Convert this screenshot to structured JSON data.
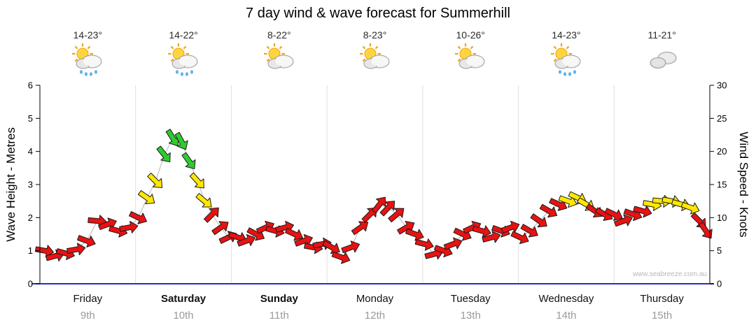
{
  "title": "7 day wind & wave forecast for Summerhill",
  "watermark": "www.seabreeze.com.au",
  "days": [
    {
      "name": "Friday",
      "date": "9th",
      "temp": "14-23°",
      "icon": "sun-cloud-rain",
      "bold": false
    },
    {
      "name": "Saturday",
      "date": "10th",
      "temp": "14-22°",
      "icon": "sun-cloud-rain",
      "bold": true
    },
    {
      "name": "Sunday",
      "date": "11th",
      "temp": "8-22°",
      "icon": "sun-cloud",
      "bold": true
    },
    {
      "name": "Monday",
      "date": "12th",
      "temp": "8-23°",
      "icon": "sun-cloud",
      "bold": false
    },
    {
      "name": "Tuesday",
      "date": "13th",
      "temp": "10-26°",
      "icon": "sun-cloud",
      "bold": false
    },
    {
      "name": "Wednesday",
      "date": "14th",
      "temp": "14-23°",
      "icon": "sun-cloud-rain",
      "bold": false
    },
    {
      "name": "Thursday",
      "date": "15th",
      "temp": "11-21°",
      "icon": "cloud",
      "bold": false
    }
  ],
  "chart_data": {
    "type": "wind-vector-series",
    "title": "7 day wind & wave forecast for Summerhill",
    "x_unit": "day_fraction",
    "x_range": [
      0,
      7
    ],
    "grid": "vertical-day-boundaries",
    "wave_axis": {
      "label": "Wave Height - Metres",
      "min": 0,
      "max": 6,
      "ticks": [
        0,
        1,
        2,
        3,
        4,
        5,
        6
      ]
    },
    "wind_axis": {
      "label": "Wind Speed - Knots",
      "min": 0,
      "max": 30,
      "ticks": [
        0,
        5,
        10,
        15,
        20,
        25,
        30
      ]
    },
    "speed_colors": {
      "red": "#e81212",
      "yellow": "#ffe800",
      "green": "#2ecc2e"
    },
    "points_format": [
      "day_fraction",
      "knots",
      "arrow_rotation_deg",
      "color_code(r|y|g)"
    ],
    "points": [
      [
        0.05,
        5,
        10,
        "r"
      ],
      [
        0.16,
        4.2,
        -15,
        "r"
      ],
      [
        0.27,
        4.6,
        15,
        "r"
      ],
      [
        0.38,
        5.2,
        -10,
        "r"
      ],
      [
        0.49,
        6.5,
        20,
        "r"
      ],
      [
        0.6,
        9.5,
        5,
        "r"
      ],
      [
        0.71,
        9,
        -20,
        "r"
      ],
      [
        0.82,
        8,
        15,
        "r"
      ],
      [
        0.93,
        8.5,
        -10,
        "r"
      ],
      [
        1.03,
        10,
        25,
        "r"
      ],
      [
        1.12,
        13,
        35,
        "y"
      ],
      [
        1.21,
        15.5,
        45,
        "y"
      ],
      [
        1.3,
        19.5,
        52,
        "g"
      ],
      [
        1.39,
        22,
        58,
        "g"
      ],
      [
        1.48,
        21.5,
        62,
        "g"
      ],
      [
        1.56,
        18.5,
        55,
        "g"
      ],
      [
        1.65,
        15.5,
        48,
        "y"
      ],
      [
        1.72,
        12.5,
        40,
        "y"
      ],
      [
        1.8,
        10.5,
        -45,
        "r"
      ],
      [
        1.89,
        8.5,
        -35,
        "r"
      ],
      [
        1.97,
        7,
        -25,
        "r"
      ],
      [
        2.07,
        7,
        20,
        "r"
      ],
      [
        2.16,
        6.5,
        -20,
        "r"
      ],
      [
        2.26,
        7.5,
        28,
        "r"
      ],
      [
        2.36,
        8.5,
        -25,
        "r"
      ],
      [
        2.46,
        8,
        15,
        "r"
      ],
      [
        2.56,
        8.5,
        -15,
        "r"
      ],
      [
        2.66,
        7.5,
        25,
        "r"
      ],
      [
        2.76,
        6.5,
        -20,
        "r"
      ],
      [
        2.86,
        5.5,
        10,
        "r"
      ],
      [
        2.95,
        6,
        -10,
        "r"
      ],
      [
        3.05,
        5.5,
        30,
        "r"
      ],
      [
        3.15,
        4,
        20,
        "r"
      ],
      [
        3.25,
        5.5,
        -20,
        "r"
      ],
      [
        3.35,
        8.5,
        -35,
        "r"
      ],
      [
        3.45,
        10.5,
        -45,
        "r"
      ],
      [
        3.55,
        12,
        -52,
        "r"
      ],
      [
        3.64,
        11.5,
        -46,
        "r"
      ],
      [
        3.73,
        10.5,
        -40,
        "r"
      ],
      [
        3.83,
        8.5,
        -30,
        "r"
      ],
      [
        3.92,
        7.5,
        20,
        "r"
      ],
      [
        4.02,
        6,
        15,
        "r"
      ],
      [
        4.12,
        4.5,
        -15,
        "r"
      ],
      [
        4.22,
        5,
        20,
        "r"
      ],
      [
        4.32,
        6,
        -20,
        "r"
      ],
      [
        4.42,
        7.5,
        25,
        "r"
      ],
      [
        4.52,
        8.5,
        -25,
        "r"
      ],
      [
        4.62,
        8,
        15,
        "r"
      ],
      [
        4.72,
        7,
        -15,
        "r"
      ],
      [
        4.82,
        8,
        20,
        "r"
      ],
      [
        4.92,
        8.5,
        -20,
        "r"
      ],
      [
        5.02,
        7,
        25,
        "r"
      ],
      [
        5.12,
        8,
        30,
        "r"
      ],
      [
        5.22,
        9.5,
        35,
        "r"
      ],
      [
        5.32,
        11,
        30,
        "r"
      ],
      [
        5.42,
        12,
        25,
        "r"
      ],
      [
        5.52,
        12.5,
        20,
        "y"
      ],
      [
        5.62,
        13,
        25,
        "y"
      ],
      [
        5.71,
        12,
        30,
        "y"
      ],
      [
        5.8,
        11,
        35,
        "r"
      ],
      [
        5.9,
        10.5,
        30,
        "r"
      ],
      [
        6.0,
        10.5,
        25,
        "r"
      ],
      [
        6.1,
        9.5,
        -20,
        "r"
      ],
      [
        6.2,
        10.5,
        20,
        "r"
      ],
      [
        6.3,
        11,
        15,
        "r"
      ],
      [
        6.4,
        12,
        10,
        "y"
      ],
      [
        6.5,
        12.5,
        5,
        "y"
      ],
      [
        6.6,
        12.5,
        10,
        "y"
      ],
      [
        6.7,
        12,
        15,
        "y"
      ],
      [
        6.8,
        11.5,
        20,
        "y"
      ],
      [
        6.89,
        9.5,
        45,
        "r"
      ],
      [
        6.96,
        8,
        55,
        "r"
      ]
    ]
  }
}
